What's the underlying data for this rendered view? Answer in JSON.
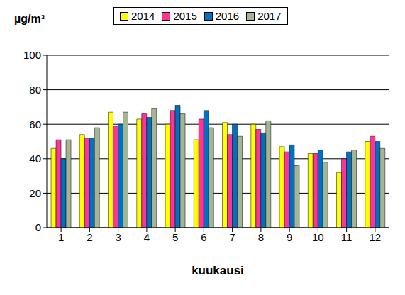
{
  "chart_data": {
    "type": "bar",
    "y_label": "µg/m³",
    "x_label": "kuukausi",
    "categories": [
      "1",
      "2",
      "3",
      "4",
      "5",
      "6",
      "7",
      "8",
      "9",
      "10",
      "11",
      "12"
    ],
    "series": [
      {
        "name": "2014",
        "color": "#ffff00",
        "values": [
          46,
          54,
          67,
          63,
          60,
          51,
          61,
          60,
          47,
          43,
          32,
          50
        ]
      },
      {
        "name": "2015",
        "color": "#ff3399",
        "values": [
          51,
          52,
          59,
          66,
          68,
          63,
          54,
          57,
          44,
          43,
          40,
          53
        ]
      },
      {
        "name": "2016",
        "color": "#0070c0",
        "values": [
          40,
          52,
          60,
          64,
          71,
          68,
          60,
          55,
          48,
          45,
          44,
          50
        ]
      },
      {
        "name": "2017",
        "color": "#a3b592",
        "values": [
          51,
          58,
          67,
          69,
          66,
          58,
          53,
          62,
          36,
          38,
          45,
          46
        ]
      }
    ],
    "ylim": [
      0,
      100
    ],
    "yticks": [
      0,
      20,
      40,
      60,
      80,
      100
    ],
    "grid": true
  }
}
